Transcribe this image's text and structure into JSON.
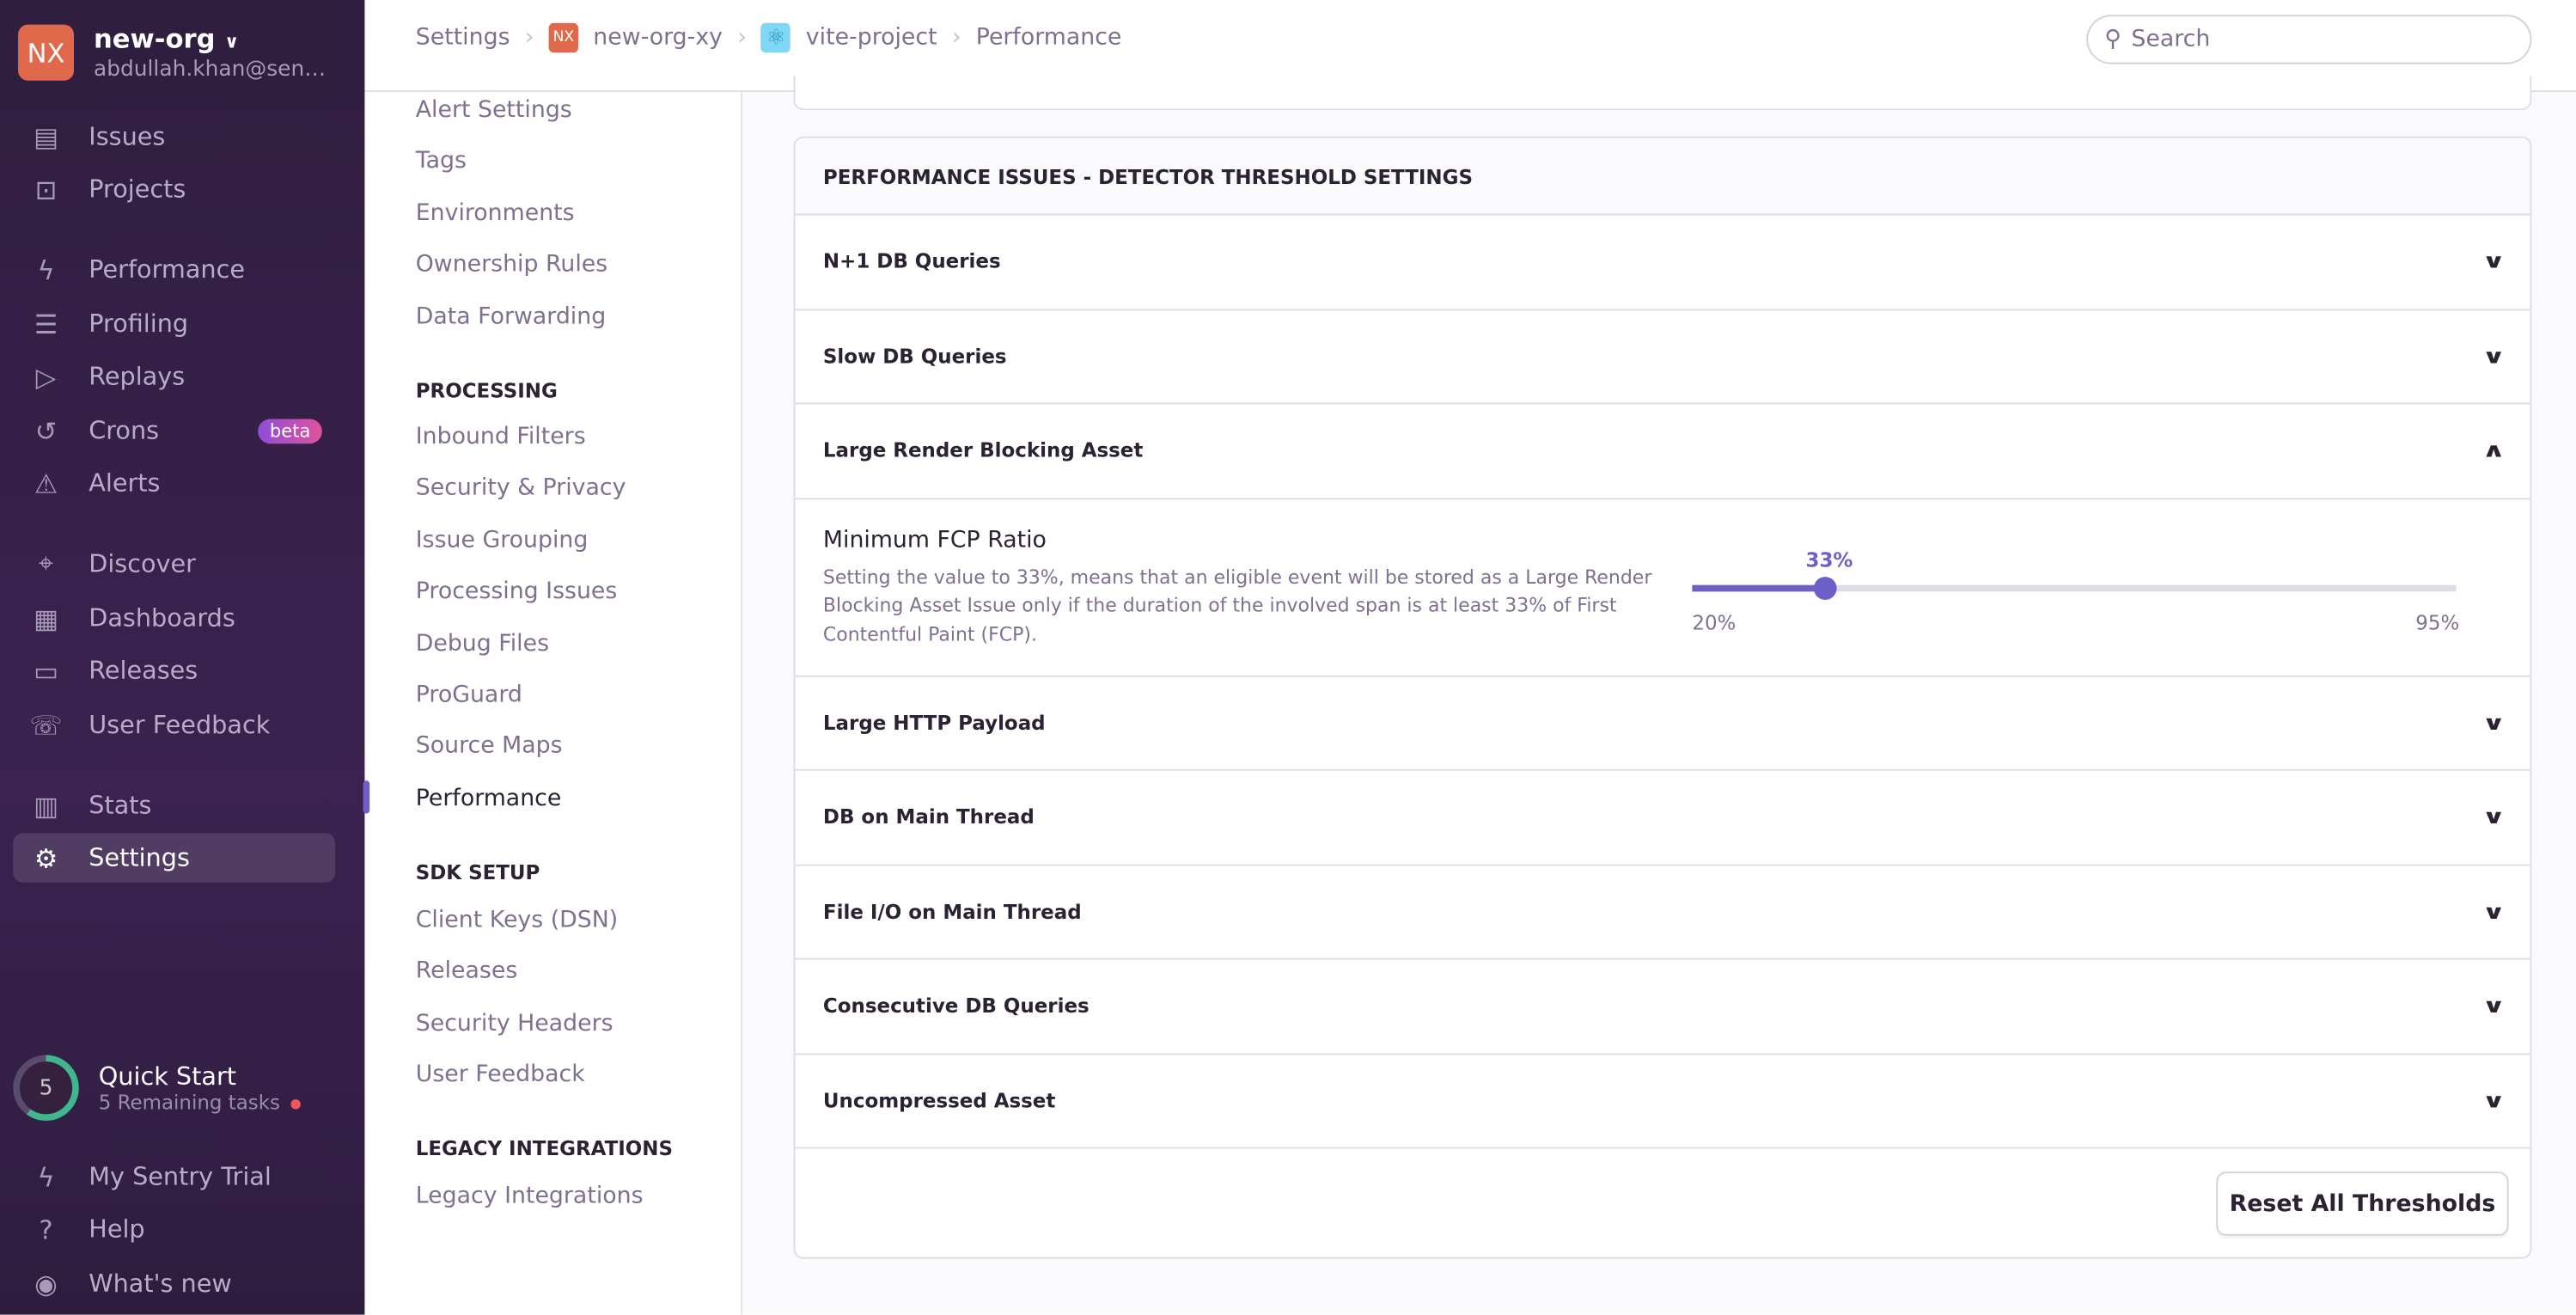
{
  "org": {
    "avatar": "NX",
    "name": "new-org",
    "email": "abdullah.khan@sen…"
  },
  "nav": [
    {
      "label": "Issues",
      "icon": "inbox-icon"
    },
    {
      "label": "Projects",
      "icon": "code-folder-icon"
    },
    {
      "label": "Performance",
      "icon": "lightning-icon"
    },
    {
      "label": "Profiling",
      "icon": "profiling-icon"
    },
    {
      "label": "Replays",
      "icon": "play-icon"
    },
    {
      "label": "Crons",
      "icon": "history-icon",
      "badge": "beta"
    },
    {
      "label": "Alerts",
      "icon": "siren-icon"
    },
    {
      "label": "Discover",
      "icon": "telescope-icon"
    },
    {
      "label": "Dashboards",
      "icon": "dashboard-icon"
    },
    {
      "label": "Releases",
      "icon": "stack-icon"
    },
    {
      "label": "User Feedback",
      "icon": "megaphone-icon"
    },
    {
      "label": "Stats",
      "icon": "stats-icon"
    },
    {
      "label": "Settings",
      "icon": "gear-icon",
      "active": true
    }
  ],
  "quick_start": {
    "count": "5",
    "title": "Quick Start",
    "subtitle": "5 Remaining tasks"
  },
  "footer_nav": [
    {
      "label": "My Sentry Trial"
    },
    {
      "label": "Help"
    },
    {
      "label": "What's new"
    }
  ],
  "breadcrumb": {
    "items": [
      "Settings",
      "new-org-xy",
      "vite-project",
      "Performance"
    ],
    "org_badge": "NX"
  },
  "search": {
    "placeholder": "Search"
  },
  "subnav": {
    "items_top": [
      "Alert Settings",
      "Tags",
      "Environments",
      "Ownership Rules",
      "Data Forwarding"
    ],
    "processing_title": "PROCESSING",
    "processing": [
      "Inbound Filters",
      "Security & Privacy",
      "Issue Grouping",
      "Processing Issues",
      "Debug Files",
      "ProGuard",
      "Source Maps",
      "Performance"
    ],
    "sdk_title": "SDK SETUP",
    "sdk": [
      "Client Keys (DSN)",
      "Releases",
      "Security Headers",
      "User Feedback"
    ],
    "legacy_title": "LEGACY INTEGRATIONS",
    "legacy": [
      "Legacy Integrations"
    ]
  },
  "panel": {
    "title": "PERFORMANCE ISSUES - DETECTOR THRESHOLD SETTINGS",
    "rows": [
      "N+1 DB Queries",
      "Slow DB Queries",
      "Large Render Blocking Asset",
      "Large HTTP Payload",
      "DB on Main Thread",
      "File I/O on Main Thread",
      "Consecutive DB Queries",
      "Uncompressed Asset"
    ],
    "expanded": {
      "label": "Minimum FCP Ratio",
      "description": "Setting the value to 33%, means that an eligible event will be stored as a Large Render Blocking Asset Issue only if the duration of the involved span is at least 33% of First Contentful Paint (FCP).",
      "value": 33,
      "value_label": "33%",
      "min": 20,
      "max": 95,
      "min_label": "20%",
      "max_label": "95%"
    },
    "reset_label": "Reset All Thresholds"
  },
  "colors": {
    "accent": "#6c5fc7",
    "sidebar": "#2f1e3f",
    "org_badge": "#e0694b"
  }
}
